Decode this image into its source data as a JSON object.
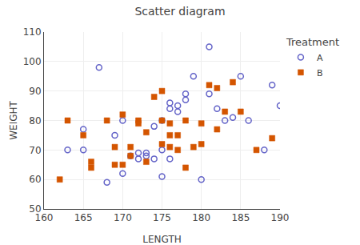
{
  "chart_data": {
    "type": "scatter",
    "title": "Scatter diagram",
    "x_label": "LENGTH",
    "y_label": "WEIGHT",
    "xlim": [
      160,
      190
    ],
    "ylim": [
      50,
      110
    ],
    "xticks": [
      160,
      165,
      170,
      175,
      180,
      185,
      190
    ],
    "yticks": [
      50,
      60,
      70,
      80,
      90,
      100,
      110
    ],
    "grid": true,
    "legend": "right",
    "legend_title": "Treatment",
    "series": [
      {
        "name": "A",
        "color": "#6464c8",
        "marker": "circle-open",
        "x": [
          163,
          165,
          165,
          167,
          168,
          169,
          170,
          170,
          171,
          172,
          172,
          173,
          173,
          174,
          174,
          175,
          175,
          175,
          176,
          176,
          176,
          177,
          177,
          178,
          178,
          179,
          180,
          181,
          181,
          182,
          183,
          184,
          185,
          186,
          188,
          189,
          190
        ],
        "values": [
          70,
          77,
          70,
          98,
          59,
          75,
          62,
          80,
          68,
          69,
          67,
          69,
          68,
          78,
          67,
          80,
          70,
          61,
          84,
          86,
          67,
          85,
          83,
          87,
          89,
          95,
          60,
          105,
          89,
          84,
          80,
          81,
          95,
          80,
          70,
          92,
          85
        ]
      },
      {
        "name": "B",
        "color": "#d45500",
        "marker": "square",
        "x": [
          162,
          163,
          165,
          166,
          166,
          168,
          169,
          169,
          170,
          170,
          171,
          171,
          172,
          172,
          173,
          173,
          174,
          175,
          175,
          175,
          176,
          176,
          176,
          177,
          177,
          178,
          178,
          179,
          180,
          180,
          181,
          182,
          182,
          183,
          184,
          185,
          187,
          189
        ],
        "values": [
          60,
          80,
          75,
          64,
          66,
          80,
          71,
          65,
          82,
          65,
          71,
          68,
          80,
          79,
          76,
          66,
          88,
          72,
          80,
          90,
          79,
          75,
          71,
          75,
          70,
          80,
          64,
          71,
          72,
          79,
          92,
          91,
          77,
          83,
          93,
          83,
          70,
          74
        ]
      }
    ]
  }
}
